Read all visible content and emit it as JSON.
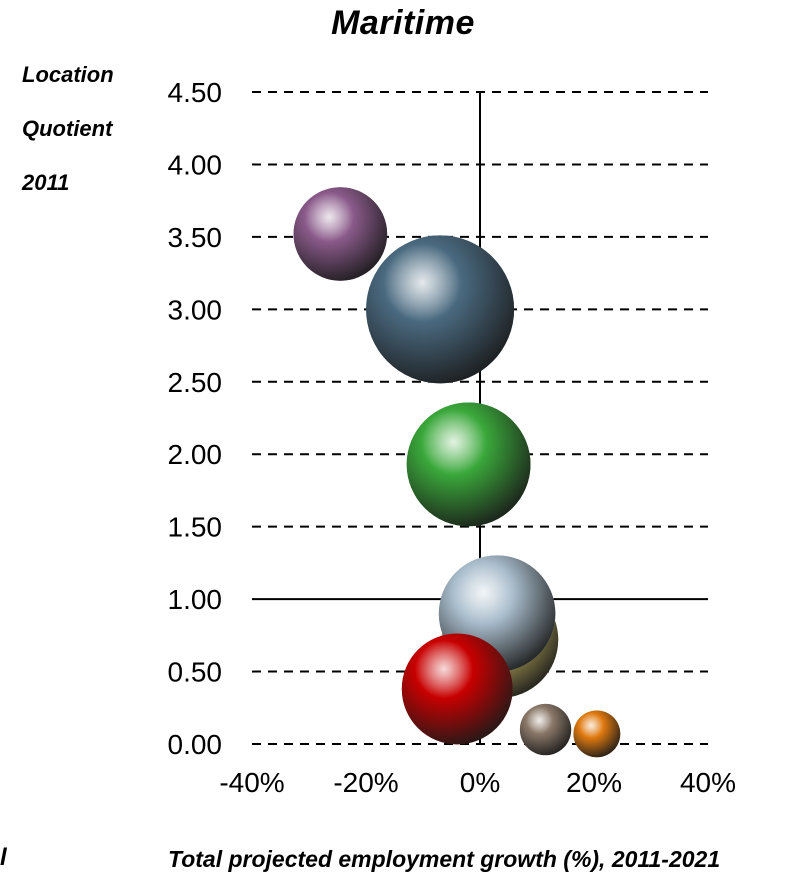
{
  "chart_data": {
    "type": "scatter",
    "title": "Maritime",
    "ylabel_lines": [
      "Location",
      "Quotient",
      "2011"
    ],
    "xlabel": "Total projected employment growth (%), 2011-2021",
    "stray_label": "l",
    "xlim": [
      -40,
      40
    ],
    "ylim": [
      0,
      4.5
    ],
    "x_ticks": [
      "-40%",
      "-20%",
      "0%",
      "20%",
      "40%"
    ],
    "y_ticks": [
      "0.00",
      "0.50",
      "1.00",
      "1.50",
      "2.00",
      "2.50",
      "3.00",
      "3.50",
      "4.00",
      "4.50"
    ],
    "grid": "dashed horizontal",
    "reference_lines": {
      "x": 0,
      "y": 1.0
    },
    "bubbles": [
      {
        "x": -24.5,
        "y": 3.52,
        "size": 0.4,
        "color": "#8a5a8a"
      },
      {
        "x": -7.0,
        "y": 3.0,
        "size": 1.0,
        "color": "#4a6a80"
      },
      {
        "x": -2.0,
        "y": 1.93,
        "size": 0.7,
        "color": "#3aa83a"
      },
      {
        "x": 3.5,
        "y": 0.72,
        "size": 0.62,
        "color": "#c8b860"
      },
      {
        "x": 3.0,
        "y": 0.9,
        "size": 0.62,
        "color": "#a8bccb"
      },
      {
        "x": -4.0,
        "y": 0.38,
        "size": 0.56,
        "color": "#c80000"
      },
      {
        "x": 11.5,
        "y": 0.1,
        "size": 0.12,
        "color": "#8a7868"
      },
      {
        "x": 20.5,
        "y": 0.07,
        "size": 0.1,
        "color": "#e07a10"
      }
    ]
  }
}
